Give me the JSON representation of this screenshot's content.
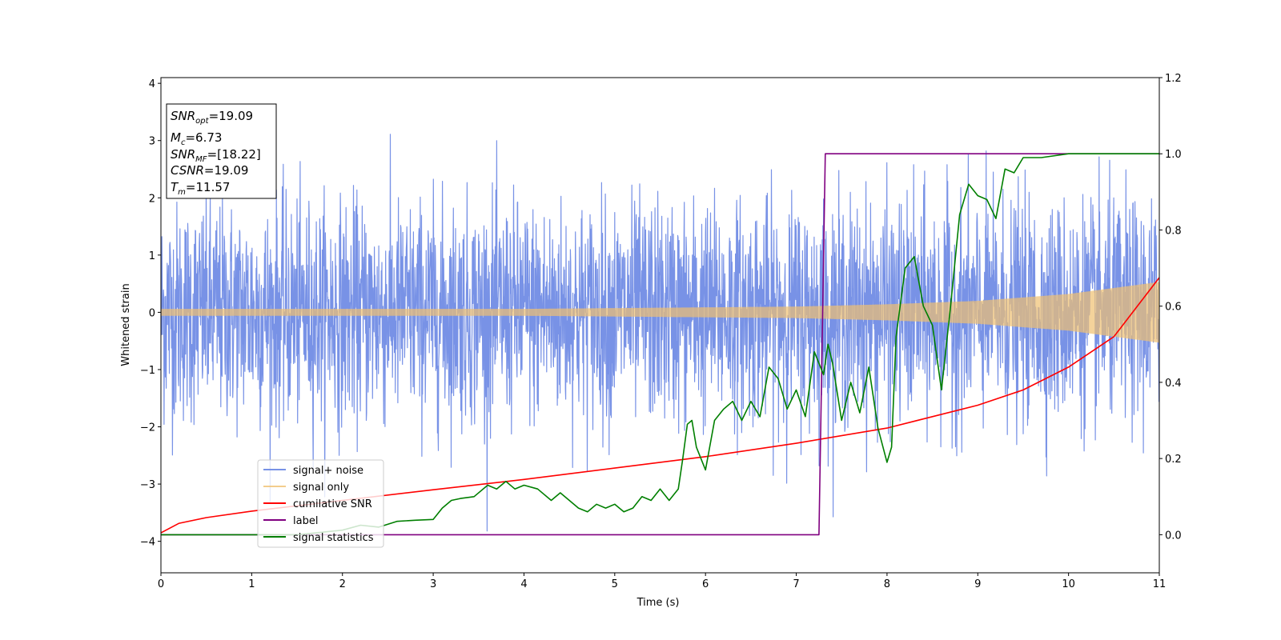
{
  "chart_data": {
    "type": "line",
    "title": "",
    "xlabel": "Time (s)",
    "ylabel": "Whitened strain",
    "xlim": [
      0,
      11
    ],
    "ylim": [
      -4.55,
      4.1
    ],
    "y2lim": [
      -0.1,
      1.2
    ],
    "grid": false,
    "legend_position": "lower-left",
    "x_ticks": [
      0,
      1,
      2,
      3,
      4,
      5,
      6,
      7,
      8,
      9,
      10,
      11
    ],
    "y_ticks": [
      4,
      3,
      2,
      1,
      0,
      -1,
      -2,
      -3,
      -4
    ],
    "y_tick_labels": [
      "4",
      "3",
      "2",
      "1",
      "0",
      "−1",
      "−2",
      "−3",
      "−4"
    ],
    "y2_ticks": [
      1.2,
      1.0,
      0.8,
      0.6,
      0.4,
      0.2,
      0.0
    ],
    "y2_tick_labels": [
      "1.2",
      "1.0",
      "0.8",
      "0.6",
      "0.4",
      "0.2",
      "0.0"
    ],
    "annotation": {
      "lines": [
        {
          "main": "SNR",
          "sub": "opt",
          "rest": "=19.09"
        },
        {
          "main": "M",
          "sub": "c",
          "rest": "=6.73"
        },
        {
          "main": "SNR",
          "sub": "MF",
          "rest": "=[18.22]"
        },
        {
          "main": "CSNR",
          "sub": "",
          "rest": "=19.09"
        },
        {
          "main": "T",
          "sub": "m",
          "rest": "=11.57"
        }
      ]
    },
    "series": [
      {
        "name": "signal+ noise",
        "axis": "left",
        "color": "#7892e6",
        "style": "noise",
        "noise_stats": {
          "mean": 0.0,
          "std": 1.0,
          "min": -4.15,
          "max": 3.7
        }
      },
      {
        "name": "signal only",
        "axis": "left",
        "color": "#f0c070",
        "style": "chirp",
        "amplitude": [
          [
            0,
            0.06
          ],
          [
            4,
            0.06
          ],
          [
            7,
            0.1
          ],
          [
            8,
            0.14
          ],
          [
            9,
            0.2
          ],
          [
            10,
            0.32
          ],
          [
            11,
            0.53
          ]
        ]
      },
      {
        "name": "cumilative SNR",
        "axis": "right",
        "color": "#ff0000",
        "x": [
          0,
          0.2,
          0.5,
          1,
          2,
          3,
          4,
          5,
          6,
          7,
          8,
          9,
          9.5,
          10,
          10.5,
          11
        ],
        "values": [
          0.005,
          0.03,
          0.045,
          0.062,
          0.09,
          0.118,
          0.145,
          0.175,
          0.205,
          0.24,
          0.28,
          0.34,
          0.38,
          0.44,
          0.52,
          0.675
        ]
      },
      {
        "name": "label",
        "axis": "right",
        "color": "#800080",
        "x": [
          0,
          7.25,
          7.32,
          11
        ],
        "values": [
          0,
          0,
          1,
          1
        ]
      },
      {
        "name": "signal statistics",
        "axis": "right",
        "color": "#007f00",
        "x": [
          0,
          1.5,
          2.0,
          2.2,
          2.4,
          2.6,
          2.8,
          3.0,
          3.1,
          3.2,
          3.3,
          3.45,
          3.6,
          3.7,
          3.8,
          3.9,
          4.0,
          4.15,
          4.3,
          4.4,
          4.5,
          4.6,
          4.7,
          4.8,
          4.9,
          5.0,
          5.1,
          5.2,
          5.3,
          5.4,
          5.5,
          5.6,
          5.7,
          5.75,
          5.8,
          5.85,
          5.9,
          6.0,
          6.1,
          6.2,
          6.3,
          6.4,
          6.5,
          6.6,
          6.7,
          6.8,
          6.9,
          7.0,
          7.1,
          7.2,
          7.3,
          7.35,
          7.4,
          7.5,
          7.6,
          7.7,
          7.8,
          7.9,
          8.0,
          8.05,
          8.1,
          8.2,
          8.3,
          8.4,
          8.5,
          8.6,
          8.7,
          8.8,
          8.9,
          9.0,
          9.1,
          9.2,
          9.3,
          9.4,
          9.5,
          9.7,
          10.0,
          10.5,
          11.0
        ],
        "values": [
          0.0,
          0.0,
          0.012,
          0.025,
          0.02,
          0.035,
          0.038,
          0.04,
          0.07,
          0.09,
          0.095,
          0.1,
          0.13,
          0.12,
          0.14,
          0.12,
          0.13,
          0.12,
          0.09,
          0.11,
          0.09,
          0.07,
          0.06,
          0.08,
          0.07,
          0.08,
          0.06,
          0.07,
          0.1,
          0.09,
          0.12,
          0.09,
          0.12,
          0.2,
          0.29,
          0.3,
          0.23,
          0.17,
          0.3,
          0.33,
          0.35,
          0.3,
          0.35,
          0.31,
          0.44,
          0.41,
          0.33,
          0.38,
          0.31,
          0.48,
          0.42,
          0.5,
          0.45,
          0.3,
          0.4,
          0.32,
          0.44,
          0.28,
          0.19,
          0.23,
          0.52,
          0.7,
          0.73,
          0.6,
          0.55,
          0.38,
          0.6,
          0.84,
          0.92,
          0.89,
          0.88,
          0.83,
          0.96,
          0.95,
          0.99,
          0.99,
          1.0,
          1.0,
          1.0
        ]
      }
    ]
  }
}
